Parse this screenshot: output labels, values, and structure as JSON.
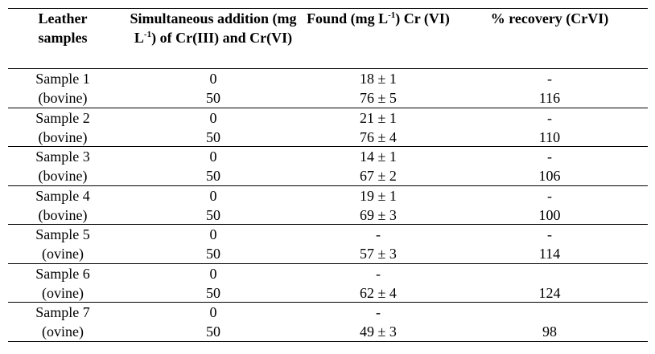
{
  "table": {
    "header": [
      [
        "Leather samples"
      ],
      [
        "Simultaneous addition (mg L",
        "-1",
        ") of Cr(III) and Cr(VI)"
      ],
      [
        "Found (mg L",
        "-1",
        ") Cr (VI)"
      ],
      [
        "% recovery (CrVI)"
      ]
    ],
    "rows": [
      {
        "sample": "Sample 1",
        "kind": "(bovine)",
        "cells": [
          [
            "0",
            "18 ± 1",
            "-"
          ],
          [
            "50",
            "76 ± 5",
            "116"
          ]
        ]
      },
      {
        "sample": "Sample 2",
        "kind": "(bovine)",
        "cells": [
          [
            "0",
            "21 ± 1",
            "-"
          ],
          [
            "50",
            "76 ± 4",
            "110"
          ]
        ]
      },
      {
        "sample": "Sample 3",
        "kind": "(bovine)",
        "cells": [
          [
            "0",
            "14 ± 1",
            "-"
          ],
          [
            "50",
            "67 ± 2",
            "106"
          ]
        ]
      },
      {
        "sample": "Sample 4",
        "kind": "(bovine)",
        "cells": [
          [
            "0",
            "19 ± 1",
            "-"
          ],
          [
            "50",
            "69 ± 3",
            "100"
          ]
        ]
      },
      {
        "sample": "Sample 5",
        "kind": "(ovine)",
        "cells": [
          [
            "0",
            "-",
            "-"
          ],
          [
            "50",
            "57 ± 3",
            "114"
          ]
        ]
      },
      {
        "sample": "Sample 6",
        "kind": "(ovine)",
        "cells": [
          [
            "0",
            "-",
            null
          ],
          [
            "50",
            "62 ± 4",
            "124"
          ]
        ]
      },
      {
        "sample": "Sample 7",
        "kind": "(ovine)",
        "cells": [
          [
            "0",
            "-",
            null
          ],
          [
            "50",
            "49 ± 3",
            "98"
          ]
        ]
      }
    ]
  }
}
